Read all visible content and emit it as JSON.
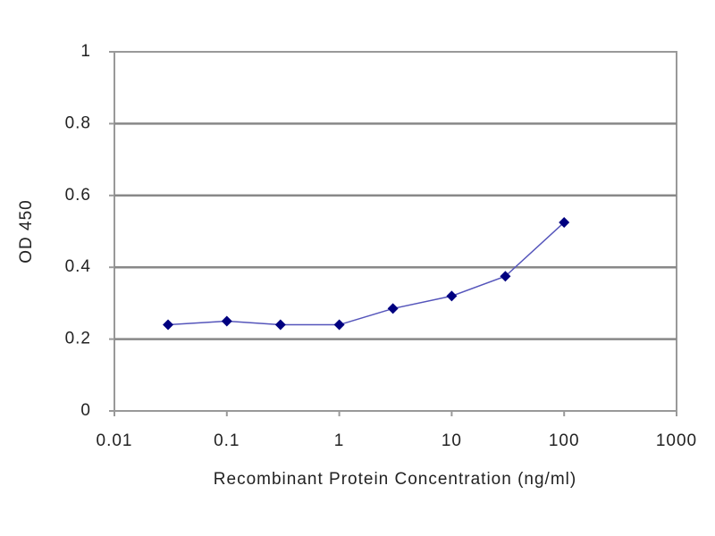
{
  "chart_data": {
    "type": "line",
    "x_label": "Recombinant Protein Concentration (ng/ml)",
    "y_label": "OD 450",
    "x": [
      0.03,
      0.1,
      0.3,
      1,
      3,
      10,
      30,
      100
    ],
    "values": [
      0.24,
      0.25,
      0.24,
      0.24,
      0.285,
      0.32,
      0.375,
      0.525
    ],
    "color": "#5555bb",
    "marker_color": "#000080",
    "xscale": "log",
    "xlim": [
      0.01,
      1000
    ],
    "xticks": [
      0.01,
      0.1,
      1,
      10,
      100,
      1000
    ],
    "ylim": [
      0,
      1
    ],
    "yticks": [
      0,
      0.2,
      0.4,
      0.6,
      0.8,
      1
    ],
    "grid": true
  }
}
